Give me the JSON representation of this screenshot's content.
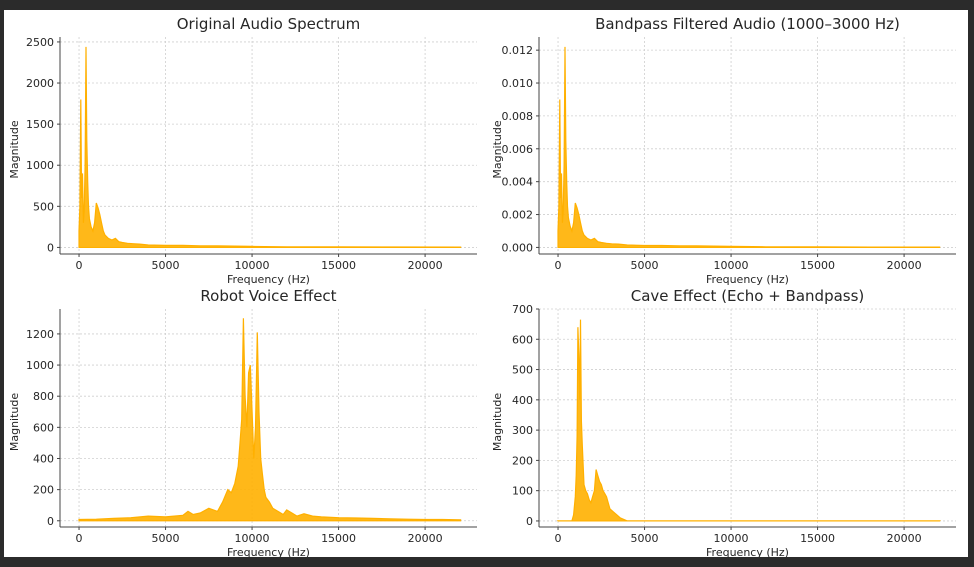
{
  "chart_data": [
    {
      "type": "area",
      "title": "Original Audio Spectrum",
      "xlabel": "Frequency (Hz)",
      "ylabel": "Magnitude",
      "xlim": [
        -1100,
        23000
      ],
      "ylim": [
        -80,
        2560
      ],
      "xticks": [
        0,
        5000,
        10000,
        15000,
        20000
      ],
      "xtick_labels": [
        "0",
        "5000",
        "10000",
        "15000",
        "20000"
      ],
      "yticks": [
        0,
        500,
        1000,
        1500,
        2000,
        2500
      ],
      "ytick_labels": [
        "0",
        "500",
        "1000",
        "1500",
        "2000",
        "2500"
      ],
      "grid": true,
      "color": "#ffb000",
      "series": [
        {
          "x": [
            0,
            50,
            100,
            150,
            200,
            250,
            300,
            350,
            400,
            450,
            500,
            550,
            600,
            700,
            800,
            900,
            1000,
            1100,
            1200,
            1300,
            1400,
            1500,
            1700,
            1900,
            2100,
            2300,
            2500,
            2800,
            3100,
            3500,
            4000,
            5000,
            6000,
            7000,
            8000,
            10000,
            12000,
            15000,
            18000,
            22050
          ],
          "values": [
            200,
            500,
            1800,
            600,
            900,
            300,
            450,
            1000,
            2440,
            1300,
            800,
            500,
            350,
            250,
            200,
            300,
            540,
            480,
            400,
            300,
            200,
            150,
            110,
            90,
            110,
            70,
            60,
            50,
            45,
            40,
            30,
            25,
            25,
            20,
            18,
            12,
            8,
            6,
            5,
            4
          ]
        }
      ]
    },
    {
      "type": "area",
      "title": "Bandpass Filtered Audio (1000–3000 Hz)",
      "xlabel": "Frequency (Hz)",
      "ylabel": "Magnitude",
      "xlim": [
        -1100,
        23000
      ],
      "ylim": [
        -0.0004,
        0.0128
      ],
      "xticks": [
        0,
        5000,
        10000,
        15000,
        20000
      ],
      "xtick_labels": [
        "0",
        "5000",
        "10000",
        "15000",
        "20000"
      ],
      "yticks": [
        0,
        0.002,
        0.004,
        0.006,
        0.008,
        0.01,
        0.012
      ],
      "ytick_labels": [
        "0.000",
        "0.002",
        "0.004",
        "0.006",
        "0.008",
        "0.010",
        "0.012"
      ],
      "grid": true,
      "color": "#ffb000",
      "series": [
        {
          "x": [
            0,
            50,
            100,
            150,
            200,
            250,
            300,
            350,
            400,
            450,
            500,
            550,
            600,
            700,
            800,
            900,
            1000,
            1100,
            1200,
            1300,
            1400,
            1500,
            1700,
            1900,
            2100,
            2300,
            2500,
            2800,
            3100,
            3500,
            4000,
            5000,
            6000,
            7000,
            8000,
            10000,
            12000,
            15000,
            18000,
            22050
          ],
          "values": [
            0.001,
            0.0025,
            0.009,
            0.003,
            0.0045,
            0.0015,
            0.0022,
            0.005,
            0.0122,
            0.0065,
            0.004,
            0.0025,
            0.0018,
            0.0013,
            0.001,
            0.0015,
            0.0027,
            0.0024,
            0.002,
            0.0015,
            0.001,
            0.00075,
            0.00055,
            0.00045,
            0.00055,
            0.00035,
            0.0003,
            0.00025,
            0.00022,
            0.0002,
            0.00015,
            0.00012,
            0.00012,
            0.0001,
            9e-05,
            6e-05,
            4e-05,
            3e-05,
            2e-05,
            2e-05
          ]
        }
      ]
    },
    {
      "type": "area",
      "title": "Robot Voice Effect",
      "xlabel": "Frequency (Hz)",
      "ylabel": "Magnitude",
      "xlim": [
        -1100,
        23000
      ],
      "ylim": [
        -40,
        1360
      ],
      "xticks": [
        0,
        5000,
        10000,
        15000,
        20000
      ],
      "xtick_labels": [
        "0",
        "5000",
        "10000",
        "15000",
        "20000"
      ],
      "yticks": [
        0,
        200,
        400,
        600,
        800,
        1000,
        1200
      ],
      "ytick_labels": [
        "0",
        "200",
        "400",
        "600",
        "800",
        "1000",
        "1200"
      ],
      "grid": true,
      "color": "#ffb000",
      "series": [
        {
          "x": [
            0,
            1000,
            2000,
            3000,
            4000,
            5000,
            6000,
            6300,
            6600,
            7000,
            7500,
            8000,
            8300,
            8600,
            8800,
            9000,
            9200,
            9300,
            9400,
            9500,
            9600,
            9700,
            9800,
            9900,
            10000,
            10100,
            10200,
            10300,
            10400,
            10500,
            10600,
            10700,
            10800,
            11000,
            11200,
            11500,
            11800,
            12000,
            12300,
            12600,
            13000,
            13500,
            14000,
            15000,
            16000,
            17000,
            18000,
            19000,
            20000,
            21000,
            22050
          ],
          "values": [
            8,
            10,
            15,
            20,
            30,
            25,
            35,
            60,
            40,
            50,
            80,
            60,
            120,
            200,
            180,
            240,
            350,
            500,
            650,
            1300,
            800,
            600,
            950,
            1000,
            700,
            400,
            600,
            1210,
            700,
            400,
            300,
            200,
            150,
            120,
            80,
            60,
            40,
            70,
            50,
            30,
            45,
            30,
            25,
            20,
            18,
            15,
            12,
            10,
            8,
            8,
            6
          ]
        }
      ]
    },
    {
      "type": "area",
      "title": "Cave Effect (Echo + Bandpass)",
      "xlabel": "Frequency (Hz)",
      "ylabel": "Magnitude",
      "xlim": [
        -1100,
        23000
      ],
      "ylim": [
        -20,
        700
      ],
      "xticks": [
        0,
        5000,
        10000,
        15000,
        20000
      ],
      "xtick_labels": [
        "0",
        "5000",
        "10000",
        "15000",
        "20000"
      ],
      "yticks": [
        0,
        100,
        200,
        300,
        400,
        500,
        600,
        700
      ],
      "ytick_labels": [
        "0",
        "100",
        "200",
        "300",
        "400",
        "500",
        "600",
        "700"
      ],
      "grid": true,
      "color": "#ffb000",
      "series": [
        {
          "x": [
            0,
            800,
            900,
            1000,
            1050,
            1100,
            1150,
            1200,
            1250,
            1300,
            1350,
            1400,
            1500,
            1600,
            1700,
            1800,
            1900,
            2000,
            2100,
            2200,
            2300,
            2400,
            2500,
            2600,
            2700,
            2800,
            2900,
            3000,
            3200,
            3400,
            3600,
            3800,
            4000,
            5000,
            10000,
            15000,
            20000,
            22050
          ],
          "values": [
            0,
            0,
            20,
            80,
            150,
            280,
            640,
            550,
            400,
            665,
            330,
            250,
            120,
            100,
            90,
            70,
            60,
            80,
            100,
            170,
            150,
            130,
            120,
            100,
            90,
            80,
            60,
            40,
            30,
            20,
            10,
            5,
            0,
            0,
            0,
            0,
            0,
            0
          ]
        }
      ]
    }
  ]
}
